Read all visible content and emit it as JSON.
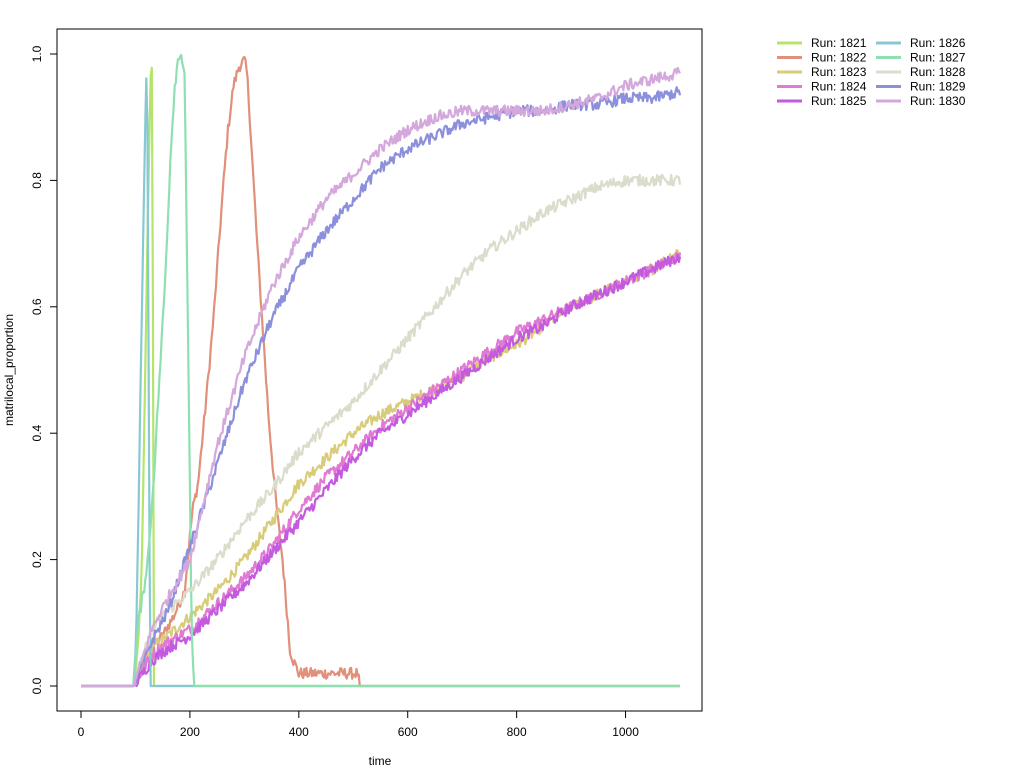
{
  "chart_data": {
    "type": "line",
    "title": "",
    "xlabel": "time",
    "ylabel": "matrilocal_proportion",
    "xlim": [
      0,
      1100
    ],
    "ylim": [
      0,
      1
    ],
    "x_ticks": [
      0,
      200,
      400,
      600,
      800,
      1000
    ],
    "y_ticks": [
      0.0,
      0.2,
      0.4,
      0.6,
      0.8,
      1.0
    ],
    "y_tick_labels": [
      "0.0",
      "0.2",
      "0.4",
      "0.6",
      "0.8",
      "1.0"
    ],
    "legend_position": "top-right, outside plot, two columns",
    "grid": false,
    "series": [
      {
        "name": "Run: 1821",
        "color": "#b5e46b",
        "x": [
          0,
          97,
          105,
          112,
          118,
          124,
          128,
          131,
          132,
          134,
          1100
        ],
        "y": [
          0,
          0,
          0.06,
          0.2,
          0.5,
          0.8,
          0.97,
          0.99,
          0.6,
          0,
          0
        ]
      },
      {
        "name": "Run: 1822",
        "color": "#e0907b",
        "x": [
          0,
          97,
          110,
          130,
          150,
          170,
          190,
          205,
          215,
          225,
          235,
          245,
          255,
          262,
          270,
          280,
          290,
          300,
          305,
          310,
          318,
          325,
          335,
          345,
          355,
          362,
          370,
          380,
          383,
          390,
          400,
          420,
          500,
          508,
          512,
          1100
        ],
        "y": [
          0,
          0,
          0.04,
          0.06,
          0.08,
          0.11,
          0.15,
          0.28,
          0.32,
          0.41,
          0.5,
          0.6,
          0.72,
          0.8,
          0.88,
          0.95,
          0.98,
          0.99,
          0.97,
          0.9,
          0.78,
          0.68,
          0.55,
          0.42,
          0.32,
          0.26,
          0.2,
          0.1,
          0.06,
          0.04,
          0.02,
          0.02,
          0.02,
          0.02,
          0,
          0
        ]
      },
      {
        "name": "Run: 1823",
        "color": "#d8cc78",
        "x": [
          0,
          97,
          130,
          160,
          200,
          250,
          300,
          350,
          400,
          450,
          500,
          550,
          600,
          650,
          700,
          750,
          800,
          850,
          900,
          950,
          1000,
          1050,
          1100
        ],
        "y": [
          0,
          0,
          0.06,
          0.08,
          0.11,
          0.15,
          0.2,
          0.26,
          0.32,
          0.36,
          0.4,
          0.43,
          0.45,
          0.47,
          0.49,
          0.52,
          0.54,
          0.57,
          0.6,
          0.62,
          0.64,
          0.66,
          0.69
        ]
      },
      {
        "name": "Run: 1824",
        "color": "#e07ad2",
        "x": [
          0,
          97,
          130,
          160,
          200,
          250,
          300,
          350,
          400,
          450,
          500,
          550,
          600,
          650,
          700,
          750,
          800,
          850,
          900,
          950,
          1000,
          1050,
          1100
        ],
        "y": [
          0,
          0,
          0.05,
          0.07,
          0.09,
          0.13,
          0.17,
          0.22,
          0.28,
          0.33,
          0.37,
          0.41,
          0.44,
          0.47,
          0.5,
          0.53,
          0.56,
          0.58,
          0.6,
          0.62,
          0.64,
          0.66,
          0.68
        ]
      },
      {
        "name": "Run: 1825",
        "color": "#c45ae0",
        "x": [
          0,
          97,
          130,
          160,
          200,
          250,
          300,
          350,
          400,
          450,
          500,
          550,
          600,
          650,
          700,
          750,
          800,
          850,
          900,
          950,
          1000,
          1050,
          1100
        ],
        "y": [
          0,
          0,
          0.04,
          0.06,
          0.08,
          0.12,
          0.16,
          0.21,
          0.26,
          0.31,
          0.36,
          0.4,
          0.43,
          0.46,
          0.49,
          0.52,
          0.55,
          0.57,
          0.6,
          0.62,
          0.64,
          0.66,
          0.68
        ]
      },
      {
        "name": "Run: 1826",
        "color": "#88c8d4",
        "x": [
          0,
          97,
          102,
          106,
          110,
          114,
          118,
          121,
          123,
          125,
          128,
          1100
        ],
        "y": [
          0,
          0,
          0.1,
          0.3,
          0.5,
          0.7,
          0.9,
          0.98,
          0.8,
          0.3,
          0,
          0
        ]
      },
      {
        "name": "Run: 1827",
        "color": "#8fe0b0",
        "x": [
          0,
          97,
          105,
          115,
          125,
          135,
          145,
          155,
          165,
          172,
          178,
          185,
          190,
          193,
          198,
          203,
          207,
          1100
        ],
        "y": [
          0,
          0,
          0.1,
          0.15,
          0.22,
          0.35,
          0.5,
          0.65,
          0.85,
          0.95,
          0.99,
          1.0,
          0.97,
          0.8,
          0.45,
          0.1,
          0,
          0
        ]
      },
      {
        "name": "Run: 1828",
        "color": "#dcdccc",
        "x": [
          0,
          97,
          130,
          160,
          200,
          250,
          300,
          350,
          400,
          450,
          500,
          550,
          600,
          650,
          700,
          750,
          800,
          850,
          900,
          950,
          1000,
          1050,
          1100
        ],
        "y": [
          0,
          0,
          0.09,
          0.12,
          0.15,
          0.2,
          0.26,
          0.31,
          0.37,
          0.41,
          0.45,
          0.5,
          0.55,
          0.6,
          0.65,
          0.69,
          0.72,
          0.75,
          0.77,
          0.79,
          0.8,
          0.8,
          0.8
        ]
      },
      {
        "name": "Run: 1829",
        "color": "#8c90dc",
        "x": [
          0,
          97,
          130,
          160,
          200,
          250,
          300,
          350,
          400,
          450,
          500,
          550,
          600,
          650,
          700,
          750,
          800,
          850,
          900,
          950,
          1000,
          1050,
          1100
        ],
        "y": [
          0,
          0,
          0.07,
          0.12,
          0.22,
          0.35,
          0.48,
          0.58,
          0.66,
          0.72,
          0.77,
          0.82,
          0.85,
          0.87,
          0.89,
          0.9,
          0.91,
          0.91,
          0.92,
          0.92,
          0.93,
          0.93,
          0.94
        ]
      },
      {
        "name": "Run: 1830",
        "color": "#d4a8dc",
        "x": [
          0,
          97,
          130,
          160,
          200,
          250,
          300,
          350,
          400,
          450,
          500,
          550,
          600,
          650,
          700,
          750,
          800,
          850,
          900,
          950,
          1000,
          1050,
          1100
        ],
        "y": [
          0,
          0,
          0.09,
          0.14,
          0.2,
          0.38,
          0.52,
          0.63,
          0.71,
          0.77,
          0.81,
          0.85,
          0.88,
          0.9,
          0.91,
          0.91,
          0.91,
          0.91,
          0.92,
          0.93,
          0.95,
          0.96,
          0.97
        ]
      }
    ]
  }
}
